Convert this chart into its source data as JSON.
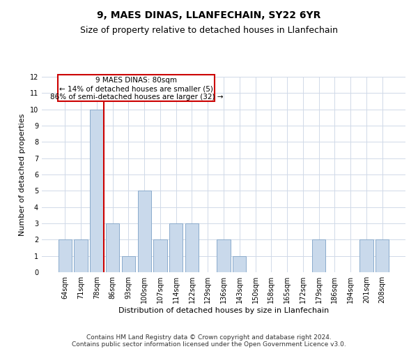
{
  "title": "9, MAES DINAS, LLANFECHAIN, SY22 6YR",
  "subtitle": "Size of property relative to detached houses in Llanfechain",
  "xlabel": "Distribution of detached houses by size in Llanfechain",
  "ylabel": "Number of detached properties",
  "categories": [
    "64sqm",
    "71sqm",
    "78sqm",
    "86sqm",
    "93sqm",
    "100sqm",
    "107sqm",
    "114sqm",
    "122sqm",
    "129sqm",
    "136sqm",
    "143sqm",
    "150sqm",
    "158sqm",
    "165sqm",
    "172sqm",
    "179sqm",
    "186sqm",
    "194sqm",
    "201sqm",
    "208sqm"
  ],
  "values": [
    2,
    2,
    10,
    3,
    1,
    5,
    2,
    3,
    3,
    0,
    2,
    1,
    0,
    0,
    0,
    0,
    2,
    0,
    0,
    2,
    2
  ],
  "bar_color": "#c9d9eb",
  "bar_edge_color": "#8aabcc",
  "highlight_index": 2,
  "highlight_line_color": "#cc0000",
  "annotation_box_color": "#cc0000",
  "annotation_line1": "9 MAES DINAS: 80sqm",
  "annotation_line2": "← 14% of detached houses are smaller (5)",
  "annotation_line3": "86% of semi-detached houses are larger (32) →",
  "ylim": [
    0,
    12
  ],
  "yticks": [
    0,
    1,
    2,
    3,
    4,
    5,
    6,
    7,
    8,
    9,
    10,
    11,
    12
  ],
  "footer_line1": "Contains HM Land Registry data © Crown copyright and database right 2024.",
  "footer_line2": "Contains public sector information licensed under the Open Government Licence v3.0.",
  "background_color": "#ffffff",
  "grid_color": "#d0d9e8",
  "title_fontsize": 10,
  "subtitle_fontsize": 9,
  "axis_label_fontsize": 8,
  "tick_fontsize": 7,
  "annotation_fontsize": 7.5,
  "footer_fontsize": 6.5
}
